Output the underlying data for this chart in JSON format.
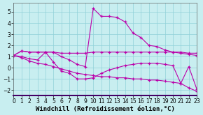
{
  "bg_color": "#c8eef0",
  "grid_color": "#90d0d8",
  "line_color": "#bb00aa",
  "marker_color": "#bb00aa",
  "series1_x": [
    0,
    1,
    2,
    3,
    4,
    5,
    6,
    7,
    8,
    9,
    10,
    11,
    12,
    13,
    14,
    15,
    16,
    17,
    18,
    19,
    20,
    21,
    22,
    23
  ],
  "series1_y": [
    1.1,
    1.5,
    1.4,
    1.4,
    1.4,
    1.4,
    1.0,
    0.7,
    0.3,
    0.1,
    5.3,
    4.6,
    4.6,
    4.5,
    4.1,
    3.1,
    2.7,
    2.0,
    1.9,
    1.6,
    1.4,
    1.3,
    1.2,
    1.1
  ],
  "series2_x": [
    0,
    1,
    2,
    3,
    4,
    5,
    6,
    7,
    8,
    9,
    10,
    11,
    12,
    13,
    14,
    15,
    16,
    17,
    18,
    19,
    20,
    21,
    22,
    23
  ],
  "series2_y": [
    1.1,
    1.5,
    1.4,
    1.4,
    1.4,
    1.4,
    1.3,
    1.3,
    1.3,
    1.3,
    1.4,
    1.4,
    1.4,
    1.4,
    1.4,
    1.4,
    1.4,
    1.4,
    1.4,
    1.4,
    1.4,
    1.4,
    1.3,
    1.3
  ],
  "series3_x": [
    0,
    1,
    2,
    3,
    4,
    5,
    6,
    7,
    8,
    9,
    10,
    11,
    12,
    13,
    14,
    15,
    16,
    17,
    18,
    19,
    20,
    21,
    22,
    23
  ],
  "series3_y": [
    1.1,
    1.0,
    0.8,
    0.7,
    1.4,
    0.5,
    -0.3,
    -0.5,
    -1.0,
    -1.0,
    -0.9,
    -0.5,
    -0.2,
    0.0,
    0.2,
    0.3,
    0.4,
    0.4,
    0.4,
    0.3,
    0.2,
    -1.4,
    0.1,
    -1.9
  ],
  "series4_x": [
    0,
    1,
    2,
    3,
    4,
    5,
    6,
    7,
    8,
    9,
    10,
    11,
    12,
    13,
    14,
    15,
    16,
    17,
    18,
    19,
    20,
    21,
    22,
    23
  ],
  "series4_y": [
    1.1,
    0.9,
    0.6,
    0.4,
    0.3,
    0.1,
    -0.1,
    -0.3,
    -0.5,
    -0.6,
    -0.7,
    -0.8,
    -0.8,
    -0.9,
    -0.9,
    -1.0,
    -1.0,
    -1.1,
    -1.1,
    -1.2,
    -1.3,
    -1.4,
    -1.8,
    -2.1
  ],
  "xlim": [
    0,
    23
  ],
  "ylim": [
    -2.5,
    5.8
  ],
  "yticks": [
    -2,
    -1,
    0,
    1,
    2,
    3,
    4,
    5
  ],
  "xticks": [
    0,
    1,
    2,
    3,
    4,
    5,
    6,
    7,
    8,
    9,
    10,
    11,
    12,
    13,
    14,
    15,
    16,
    17,
    18,
    19,
    20,
    21,
    22,
    23
  ],
  "xlabel": "Windchill (Refroidissement éolien,°C)",
  "xlabel_fontsize": 6.5,
  "tick_fontsize": 5.5,
  "linewidth": 0.8,
  "markersize": 3.0
}
